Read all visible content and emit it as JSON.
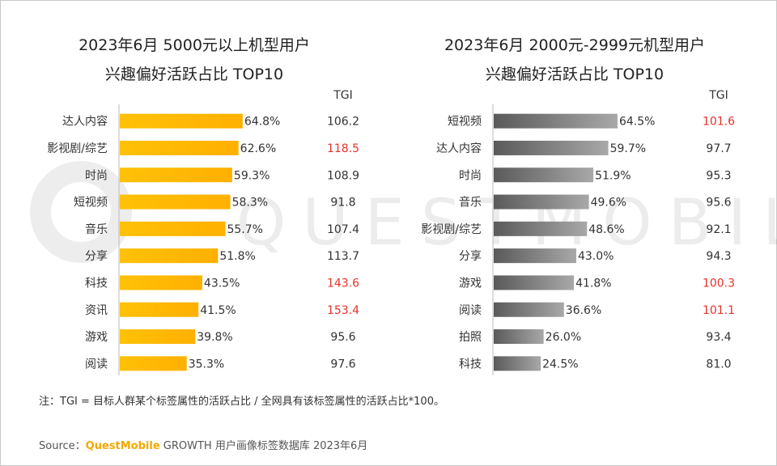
{
  "watermark": "QUESTMOBILE",
  "note": "注：TGI = 目标人群某个标签属性的活跃占比 / 全网具有该标签属性的活跃占比*100。",
  "source": {
    "label": "Source：",
    "brand": "QuestMobile",
    "text": "GROWTH 用户画像标签数据库 2023年6月"
  },
  "colors": {
    "gold_start": "#ffc107",
    "gold_end": "#ffb000",
    "gray_start": "#5a5a5a",
    "gray_end": "#a8a8a8",
    "tgi_high": "#e8312b",
    "tgi_normal": "#333333"
  },
  "chart_data": [
    {
      "type": "bar",
      "title_line1": "2023年6月 5000元以上机型用户",
      "title_line2": "兴趣偏好活跃占比 TOP10",
      "tgi_header": "TGI",
      "categories": [
        "达人内容",
        "影视剧/综艺",
        "时尚",
        "短视频",
        "音乐",
        "分享",
        "科技",
        "资讯",
        "游戏",
        "阅读"
      ],
      "values": [
        64.8,
        62.6,
        59.3,
        58.3,
        55.7,
        51.8,
        43.5,
        41.5,
        39.8,
        35.3
      ],
      "value_labels": [
        "64.8%",
        "62.6%",
        "59.3%",
        "58.3%",
        "55.7%",
        "51.8%",
        "43.5%",
        "41.5%",
        "39.8%",
        "35.3%"
      ],
      "tgi": [
        "106.2",
        "118.5",
        "108.9",
        "91.8",
        "107.4",
        "113.7",
        "143.6",
        "153.4",
        "95.6",
        "97.6"
      ],
      "tgi_highlight": [
        false,
        true,
        false,
        false,
        false,
        false,
        true,
        true,
        false,
        false
      ],
      "xlim": [
        0,
        70
      ]
    },
    {
      "type": "bar",
      "title_line1": "2023年6月 2000元-2999元机型用户",
      "title_line2": "兴趣偏好活跃占比 TOP10",
      "tgi_header": "TGI",
      "categories": [
        "短视频",
        "达人内容",
        "时尚",
        "音乐",
        "影视剧/综艺",
        "分享",
        "游戏",
        "阅读",
        "拍照",
        "科技"
      ],
      "values": [
        64.5,
        59.7,
        51.9,
        49.6,
        48.6,
        43.0,
        41.8,
        36.6,
        26.0,
        24.5
      ],
      "value_labels": [
        "64.5%",
        "59.7%",
        "51.9%",
        "49.6%",
        "48.6%",
        "43.0%",
        "41.8%",
        "36.6%",
        "26.0%",
        "24.5%"
      ],
      "tgi": [
        "101.6",
        "97.7",
        "95.3",
        "95.6",
        "92.1",
        "94.3",
        "100.3",
        "101.1",
        "93.4",
        "81.0"
      ],
      "tgi_highlight": [
        true,
        false,
        false,
        false,
        false,
        false,
        true,
        true,
        false,
        false
      ],
      "xlim": [
        0,
        70
      ]
    }
  ]
}
